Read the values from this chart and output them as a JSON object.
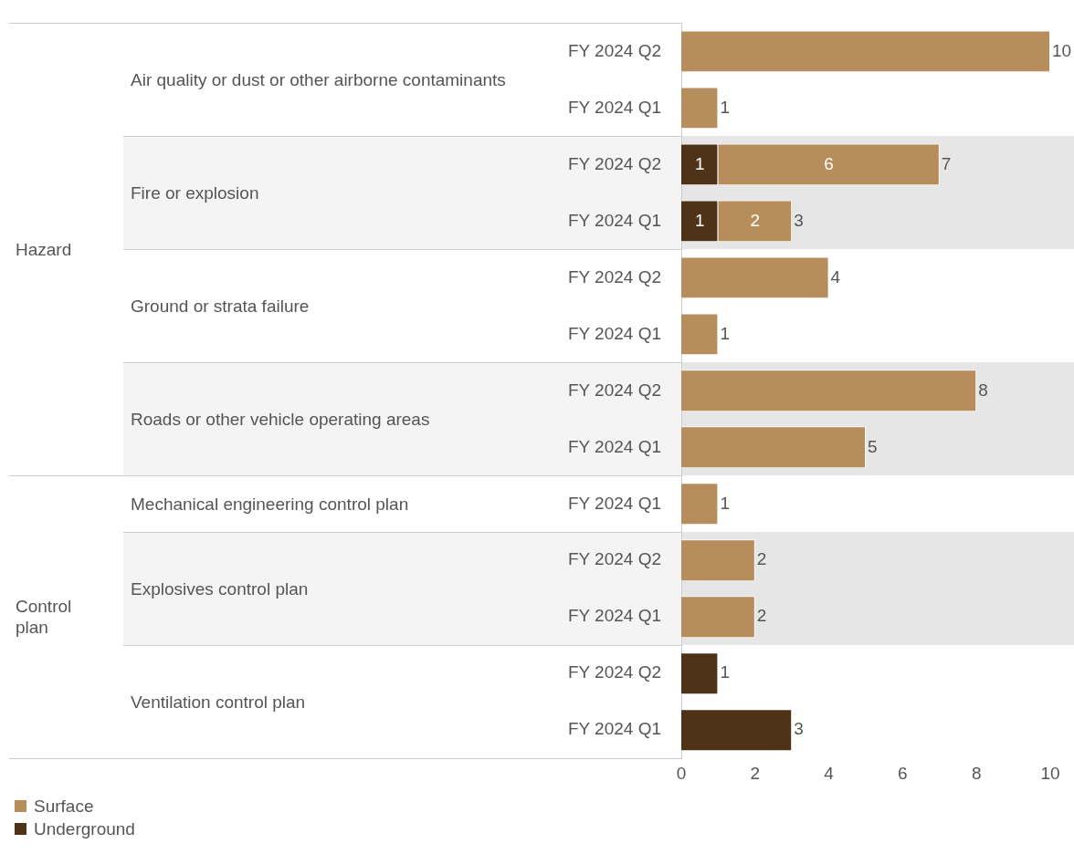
{
  "chart_data": {
    "type": "bar",
    "orientation": "horizontal",
    "stacked": true,
    "categories": [
      "FY 2024 Q2",
      "FY 2024 Q1",
      "FY 2024 Q2",
      "FY 2024 Q1",
      "FY 2024 Q2",
      "FY 2024 Q1",
      "FY 2024 Q2",
      "FY 2024 Q1",
      "FY 2024 Q1",
      "FY 2024 Q2",
      "FY 2024 Q1",
      "FY 2024 Q2",
      "FY 2024 Q1"
    ],
    "series": [
      {
        "name": "Underground",
        "color": "#4f3318",
        "values": [
          null,
          null,
          1,
          1,
          null,
          null,
          null,
          null,
          null,
          null,
          null,
          1,
          3
        ],
        "value_labels": [
          null,
          null,
          "1",
          "1",
          null,
          null,
          null,
          null,
          null,
          null,
          null,
          null,
          null
        ]
      },
      {
        "name": "Surface",
        "color": "#b68d5b",
        "values": [
          10,
          1,
          6,
          2,
          4,
          1,
          8,
          5,
          1,
          2,
          2,
          null,
          null
        ],
        "value_labels": [
          null,
          null,
          "6",
          "2",
          null,
          null,
          null,
          null,
          null,
          null,
          null,
          null,
          null
        ]
      }
    ],
    "totals": [
      "10",
      "1",
      "7",
      "3",
      "4",
      "1",
      "8",
      "5",
      "1",
      "2",
      "2",
      "1",
      "3"
    ],
    "xlim": [
      0,
      10
    ],
    "xticks": [
      0,
      2,
      4,
      6,
      8,
      10
    ],
    "grid": false,
    "legend": "bottom left",
    "annotations": [
      "Hazard",
      "Air quality or dust or other airborne contaminants",
      "Fire or explosion",
      "Ground or strata failure",
      "Roads or other vehicle operating areas",
      "Control plan",
      "Mechanical engineering control plan",
      "Explosives control plan",
      "Ventilation control plan"
    ]
  }
}
